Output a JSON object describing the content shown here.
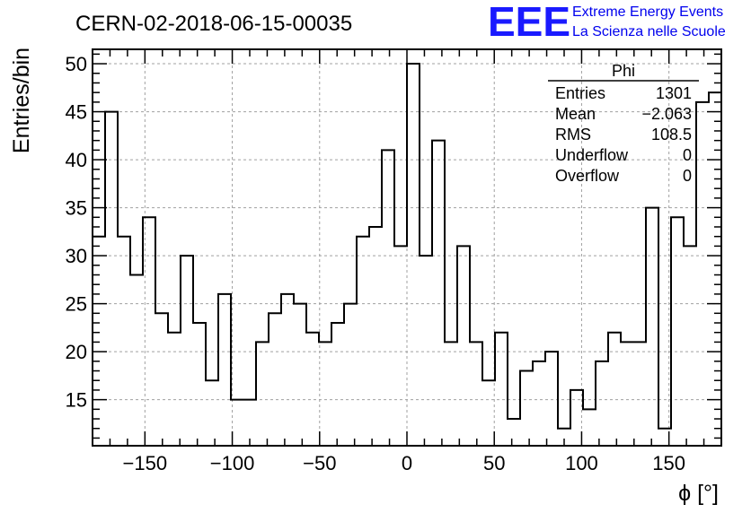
{
  "chart_data": {
    "type": "histogram",
    "title": "CERN-02-2018-06-15-00035",
    "xlabel": "ϕ [°]",
    "ylabel": "Entries/bin",
    "xlim": [
      -180,
      180
    ],
    "ylim": [
      10.2,
      51.5
    ],
    "xticks": [
      -150,
      -100,
      -50,
      0,
      50,
      100,
      150
    ],
    "xtick_labels": [
      "−150",
      "−100",
      "−50",
      "0",
      "50",
      "100",
      "150"
    ],
    "yticks": [
      15,
      20,
      25,
      30,
      35,
      40,
      45,
      50
    ],
    "ytick_labels": [
      "15",
      "20",
      "25",
      "30",
      "35",
      "40",
      "45",
      "50"
    ],
    "grid": true,
    "bin_width": 7.2,
    "values": [
      32,
      45,
      32,
      28,
      34,
      24,
      22,
      30,
      23,
      17,
      26,
      15,
      15,
      21,
      24,
      26,
      25,
      22,
      21,
      23,
      25,
      32,
      33,
      41,
      31,
      50,
      30,
      42,
      21,
      31,
      21,
      17,
      22,
      13,
      18,
      19,
      20,
      12,
      16,
      14,
      19,
      22,
      21,
      21,
      35,
      12,
      34,
      31,
      46,
      47
    ],
    "stats": {
      "name": "Phi",
      "rows": [
        {
          "label": "Entries",
          "value": "1301"
        },
        {
          "label": "Mean",
          "value": "−2.063"
        },
        {
          "label": "RMS",
          "value": "108.5"
        },
        {
          "label": "Underflow",
          "value": "0"
        },
        {
          "label": "Overflow",
          "value": "0"
        }
      ]
    }
  },
  "logo": {
    "mark": "EEE",
    "line1": "Extreme Energy Events",
    "line2": "La Scienza nelle Scuole"
  },
  "colors": {
    "histogram_line": "#000000",
    "grid": "#a0a0a0",
    "logo": "#1a1aff"
  }
}
